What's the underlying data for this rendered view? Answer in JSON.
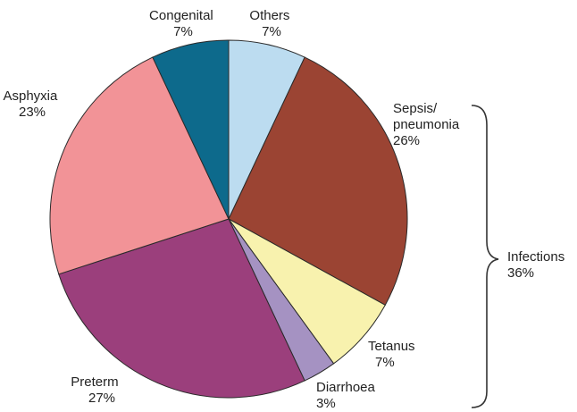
{
  "chart_data": {
    "type": "pie",
    "slices": [
      {
        "label": "Others",
        "value": 7,
        "value_label": "7%",
        "color": "#bcdcf0"
      },
      {
        "label": "Sepsis/\npneumonia",
        "value": 26,
        "value_label": "26%",
        "color": "#9b4433"
      },
      {
        "label": "Tetanus",
        "value": 7,
        "value_label": "7%",
        "color": "#f8f2ae"
      },
      {
        "label": "Diarrhoea",
        "value": 3,
        "value_label": "3%",
        "color": "#a592c2"
      },
      {
        "label": "Preterm",
        "value": 27,
        "value_label": "27%",
        "color": "#9b3f7c"
      },
      {
        "label": "Asphyxia",
        "value": 23,
        "value_label": "23%",
        "color": "#f29397"
      },
      {
        "label": "Congenital",
        "value": 7,
        "value_label": "7%",
        "color": "#0d6a8c"
      }
    ],
    "group_annotation": {
      "label": "Infections",
      "value_label": "36%",
      "members": [
        "Sepsis/\npneumonia",
        "Tetanus",
        "Diarrhoea"
      ]
    }
  }
}
